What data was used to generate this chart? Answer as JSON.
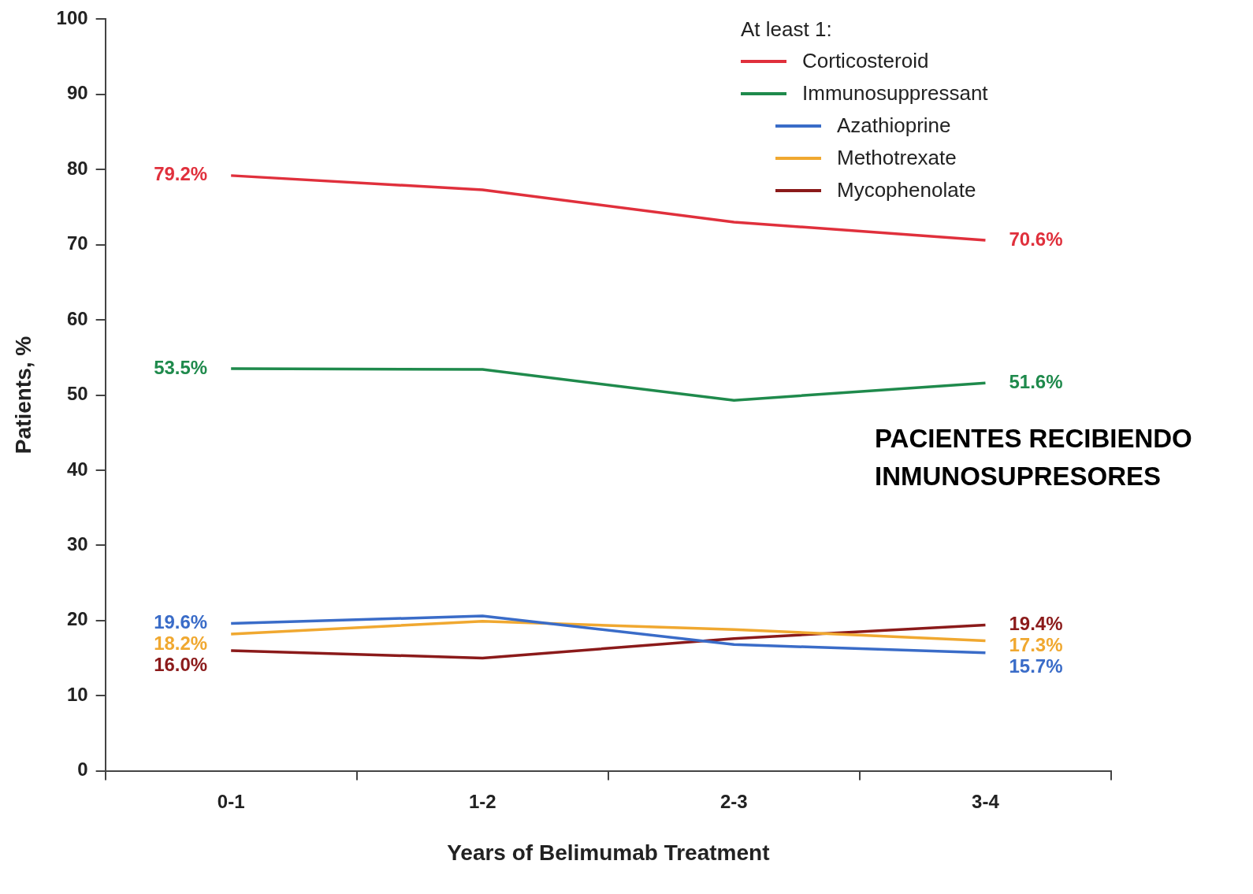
{
  "chart_data": {
    "type": "line",
    "xlabel": "Years of Belimumab Treatment",
    "ylabel": "Patients, %",
    "legend_title": "At least 1:",
    "legend": "top right",
    "grid": false,
    "marker": "none",
    "line_style": "solid",
    "categories": [
      "0-1",
      "1-2",
      "2-3",
      "3-4"
    ],
    "ylim": [
      0,
      100
    ],
    "yticks": [
      0,
      10,
      20,
      30,
      40,
      50,
      60,
      70,
      80,
      90,
      100
    ],
    "series": [
      {
        "name": "Corticosteroid",
        "color": "#e0303c",
        "values": [
          79.2,
          77.3,
          73.0,
          70.6
        ],
        "value_labels": [
          "79.2%",
          null,
          null,
          "70.6%"
        ]
      },
      {
        "name": "Immunosuppressant",
        "color": "#1f8a4c",
        "values": [
          53.5,
          53.4,
          49.3,
          51.6
        ],
        "value_labels": [
          "53.5%",
          null,
          null,
          "51.6%"
        ]
      },
      {
        "name": "Azathioprine",
        "color": "#3a6cc8",
        "values": [
          19.6,
          20.6,
          16.8,
          15.7
        ],
        "value_labels": [
          "19.6%",
          null,
          null,
          "15.7%"
        ]
      },
      {
        "name": "Methotrexate",
        "color": "#f0a830",
        "values": [
          18.2,
          19.9,
          18.8,
          17.3
        ],
        "value_labels": [
          "18.2%",
          null,
          null,
          "17.3%"
        ]
      },
      {
        "name": "Mycophenolate",
        "color": "#8b1a1a",
        "values": [
          16.0,
          15.0,
          17.6,
          19.4
        ],
        "value_labels": [
          "16.0%",
          null,
          null,
          "19.4%"
        ]
      }
    ],
    "annotations": [
      "PACIENTES RECIBIENDO\nINMUNOSUPRESORES"
    ]
  }
}
